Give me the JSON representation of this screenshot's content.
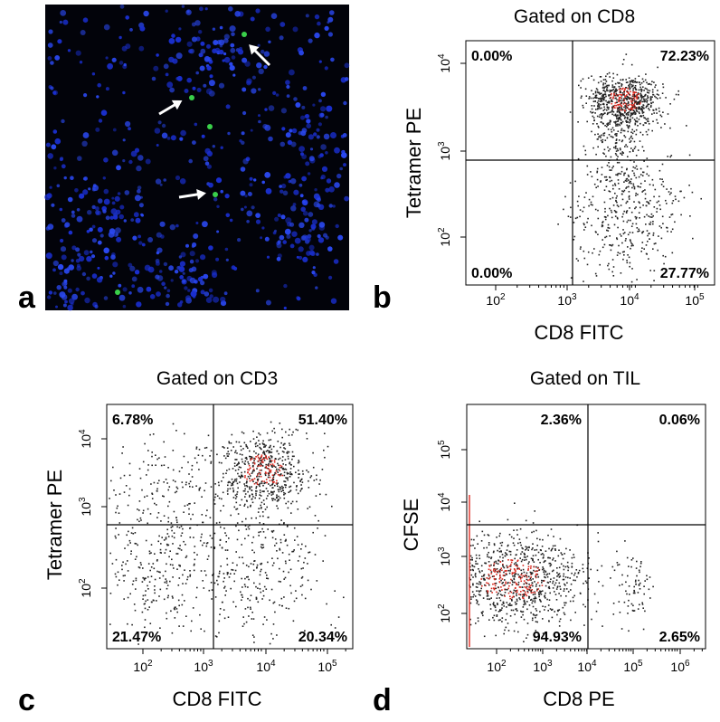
{
  "panels": [
    {
      "label": "a"
    },
    {
      "label": "b",
      "title": "Gated on CD8",
      "x_label": "CD8 FITC",
      "y_label": "Tetramer PE",
      "quadrants": {
        "upper_left": "0.00%",
        "upper_right": "72.23%",
        "lower_left": "0.00%",
        "lower_right": "27.77%"
      },
      "x_ticks": [
        {
          "base": "10",
          "exp": "2"
        },
        {
          "base": "10",
          "exp": "3"
        },
        {
          "base": "10",
          "exp": "4"
        },
        {
          "base": "10",
          "exp": "5"
        }
      ],
      "y_ticks": [
        {
          "base": "10",
          "exp": "4"
        },
        {
          "base": "10",
          "exp": "3"
        },
        {
          "base": "10",
          "exp": "2"
        }
      ]
    },
    {
      "label": "c",
      "title": "Gated on CD3",
      "x_label": "CD8 FITC",
      "y_label": "Tetramer PE",
      "quadrants": {
        "upper_left": "6.78%",
        "upper_right": "51.40%",
        "lower_left": "21.47%",
        "lower_right": "20.34%"
      },
      "x_ticks": [
        {
          "base": "10",
          "exp": "2"
        },
        {
          "base": "10",
          "exp": "3"
        },
        {
          "base": "10",
          "exp": "4"
        },
        {
          "base": "10",
          "exp": "5"
        }
      ],
      "y_ticks": [
        {
          "base": "10",
          "exp": "4"
        },
        {
          "base": "10",
          "exp": "3"
        },
        {
          "base": "10",
          "exp": "2"
        }
      ]
    },
    {
      "label": "d",
      "title": "Gated on TIL",
      "x_label": "CD8 PE",
      "y_label": "CFSE",
      "quadrants": {
        "upper_left": "2.36%",
        "upper_right": "0.06%",
        "lower_left": "94.93%",
        "lower_right": "2.65%"
      },
      "x_ticks": [
        {
          "base": "10",
          "exp": "2"
        },
        {
          "base": "10",
          "exp": "3"
        },
        {
          "base": "10",
          "exp": "4"
        },
        {
          "base": "10",
          "exp": "5"
        },
        {
          "base": "10",
          "exp": "6"
        }
      ],
      "y_ticks": [
        {
          "base": "10",
          "exp": "5"
        },
        {
          "base": "10",
          "exp": "4"
        },
        {
          "base": "10",
          "exp": "3"
        },
        {
          "base": "10",
          "exp": "2"
        }
      ]
    }
  ]
}
